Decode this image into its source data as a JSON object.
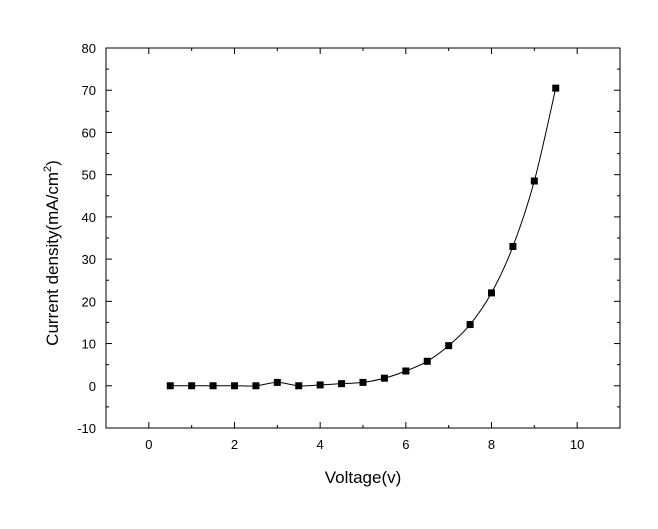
{
  "chart_data": {
    "type": "scatter",
    "xlabel": "Voltage(v)",
    "ylabel_main": "Current density(mA/cm",
    "ylabel_sup": "2",
    "ylabel_close": ")",
    "xlim": [
      -1,
      11
    ],
    "ylim": [
      -10,
      80
    ],
    "x_ticks": [
      0,
      2,
      4,
      6,
      8,
      10
    ],
    "y_ticks": [
      -10,
      0,
      10,
      20,
      30,
      40,
      50,
      60,
      70,
      80
    ],
    "x_ticks_labels": [
      "0",
      "2",
      "4",
      "6",
      "8",
      "10"
    ],
    "y_ticks_labels": [
      "-10",
      "0",
      "10",
      "20",
      "30",
      "40",
      "50",
      "60",
      "70",
      "80"
    ],
    "grid": false,
    "marker": "square",
    "line": "connected",
    "series": [
      {
        "x": [
          0.5,
          1.0,
          1.5,
          2.0,
          2.5,
          3.0,
          3.5,
          4.0,
          4.5,
          5.0,
          5.5,
          6.0,
          6.5,
          7.0,
          7.5,
          8.0,
          8.5,
          9.0,
          9.5
        ],
        "y": [
          0,
          0,
          0,
          0,
          0,
          0.8,
          0,
          0.2,
          0.5,
          0.8,
          1.8,
          3.5,
          5.8,
          9.5,
          14.5,
          22.0,
          33.0,
          48.5,
          70.5
        ]
      }
    ],
    "colors": {
      "marker": "#000000",
      "line": "#000000",
      "axis": "#000000"
    }
  }
}
